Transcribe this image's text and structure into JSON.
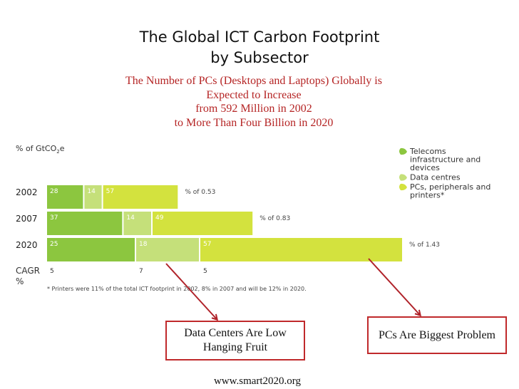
{
  "slide": {
    "title_line1": "The Global ICT Carbon Footprint",
    "title_line2": "by Subsector",
    "subtitle_lines": [
      "The Number of PCs (Desktops and Laptops) Globally is",
      "Expected to Increase",
      "from 592 Million in 2002",
      "to More Than Four Billion in 2020"
    ],
    "callout_left": "Data Centers Are Low Hanging Fruit",
    "callout_right": "PCs Are Biggest Problem",
    "source": "www.smart2020.org"
  },
  "chart_data": {
    "type": "bar",
    "stacked": true,
    "orientation": "horizontal",
    "ylabel": "% of GtCO₂e",
    "categories": [
      "2002",
      "2007",
      "2020"
    ],
    "series": [
      {
        "name": "Telecoms infrastructure and devices",
        "color": "#8cc63f",
        "values": [
          28,
          37,
          25
        ]
      },
      {
        "name": "Data centres",
        "color": "#c5e07a",
        "values": [
          14,
          14,
          18
        ]
      },
      {
        "name": "PCs, peripherals and printers*",
        "color": "#d3e23e",
        "values": [
          57,
          49,
          57
        ]
      }
    ],
    "totals": [
      "% of 0.53",
      "% of 0.83",
      "% of 1.43"
    ],
    "totals_value": [
      0.53,
      0.83,
      1.43
    ],
    "cagr_label": "CAGR %",
    "cagr": [
      "5",
      "7",
      "5"
    ],
    "footnote": "* Printers were 11% of the total ICT footprint in 2002, 8% in 2007 and will be 12% in 2020.",
    "legend_position": "top-right",
    "grid": false
  }
}
